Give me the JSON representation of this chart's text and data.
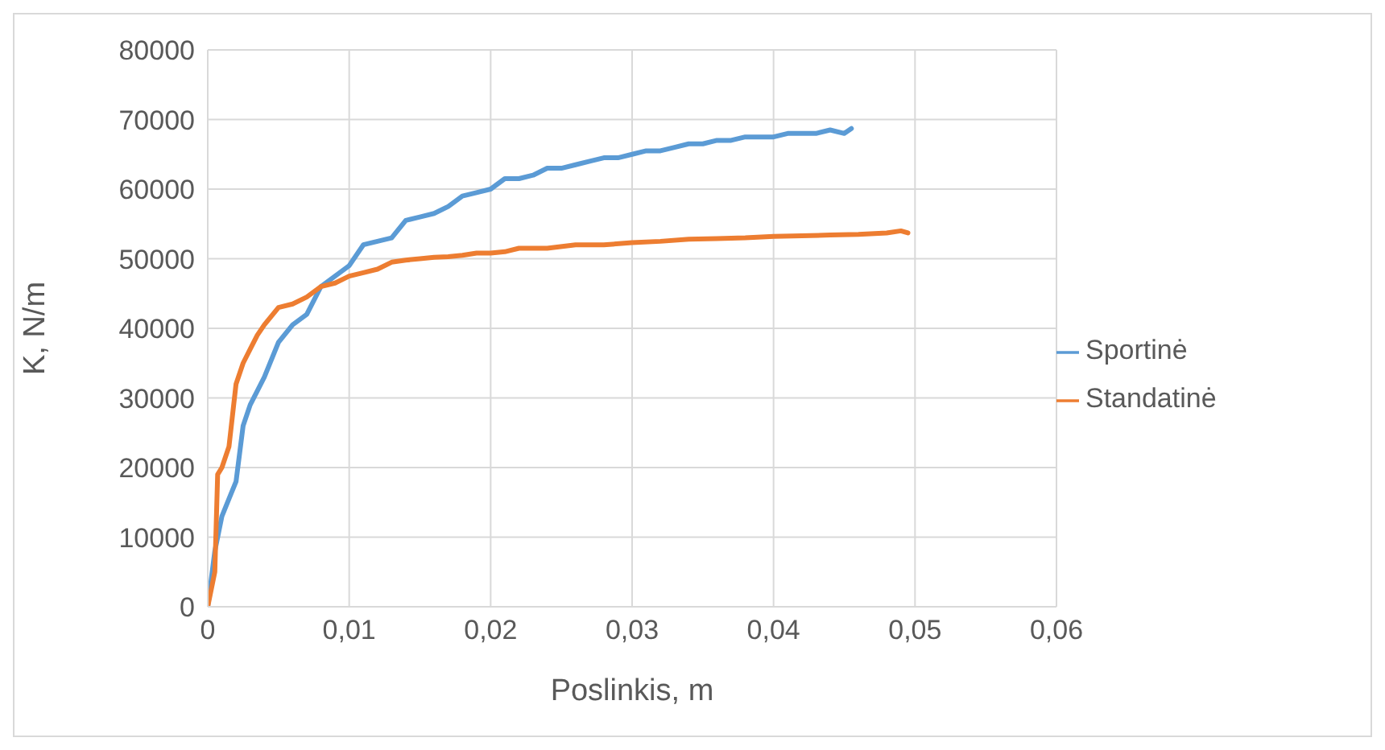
{
  "chart_data": {
    "type": "line",
    "xlabel": "Poslinkis, m",
    "ylabel": "K, N/m",
    "xlim": [
      0,
      0.06
    ],
    "xticks": [
      0,
      {
        "value": 0.01,
        "label": "0,01"
      },
      {
        "value": 0.02,
        "label": "0,02"
      },
      {
        "value": 0.03,
        "label": "0,03"
      },
      {
        "value": 0.04,
        "label": "0,04"
      },
      {
        "value": 0.05,
        "label": "0,05"
      },
      {
        "value": 0.06,
        "label": "0,06"
      }
    ],
    "ylim": [
      0,
      80000
    ],
    "yticks": [
      0,
      10000,
      20000,
      30000,
      40000,
      50000,
      60000,
      70000,
      80000
    ],
    "grid": true,
    "legend": "right",
    "marker": "none",
    "line_style": "solid",
    "series": [
      {
        "name": "Sportinė",
        "color": "#5b9bd5",
        "x": [
          0,
          0.0005,
          0.001,
          0.0015,
          0.002,
          0.0025,
          0.003,
          0.004,
          0.005,
          0.006,
          0.007,
          0.008,
          0.009,
          0.01,
          0.011,
          0.012,
          0.013,
          0.014,
          0.015,
          0.016,
          0.017,
          0.018,
          0.019,
          0.02,
          0.021,
          0.022,
          0.023,
          0.024,
          0.025,
          0.026,
          0.027,
          0.028,
          0.029,
          0.03,
          0.031,
          0.032,
          0.033,
          0.034,
          0.035,
          0.036,
          0.037,
          0.038,
          0.039,
          0.04,
          0.041,
          0.042,
          0.043,
          0.044,
          0.045,
          0.0455
        ],
        "values": [
          0,
          8000,
          13000,
          15500,
          18000,
          26000,
          29000,
          33000,
          38000,
          40500,
          42000,
          46000,
          47500,
          49000,
          52000,
          52500,
          53000,
          55500,
          56000,
          56500,
          57500,
          59000,
          59500,
          60000,
          61500,
          61500,
          62000,
          63000,
          63000,
          63500,
          64000,
          64500,
          64500,
          65000,
          65500,
          65500,
          66000,
          66500,
          66500,
          67000,
          67000,
          67500,
          67500,
          67500,
          68000,
          68000,
          68000,
          68500,
          68000,
          68700
        ]
      },
      {
        "name": "Standatinė",
        "color": "#ed7d31",
        "x": [
          0,
          0.0005,
          0.0007,
          0.001,
          0.0015,
          0.002,
          0.0025,
          0.003,
          0.0035,
          0.004,
          0.005,
          0.006,
          0.007,
          0.008,
          0.009,
          0.01,
          0.011,
          0.012,
          0.013,
          0.014,
          0.015,
          0.016,
          0.017,
          0.018,
          0.019,
          0.02,
          0.021,
          0.022,
          0.024,
          0.026,
          0.028,
          0.03,
          0.032,
          0.034,
          0.036,
          0.038,
          0.04,
          0.042,
          0.044,
          0.046,
          0.048,
          0.049,
          0.0495
        ],
        "values": [
          0,
          5000,
          19000,
          20000,
          23000,
          32000,
          35000,
          37000,
          39000,
          40500,
          43000,
          43500,
          44500,
          46000,
          46500,
          47500,
          48000,
          48500,
          49500,
          49800,
          50000,
          50200,
          50300,
          50500,
          50800,
          50800,
          51000,
          51500,
          51500,
          52000,
          52000,
          52300,
          52500,
          52800,
          52900,
          53000,
          53200,
          53300,
          53400,
          53500,
          53700,
          54000,
          53700
        ]
      }
    ]
  }
}
